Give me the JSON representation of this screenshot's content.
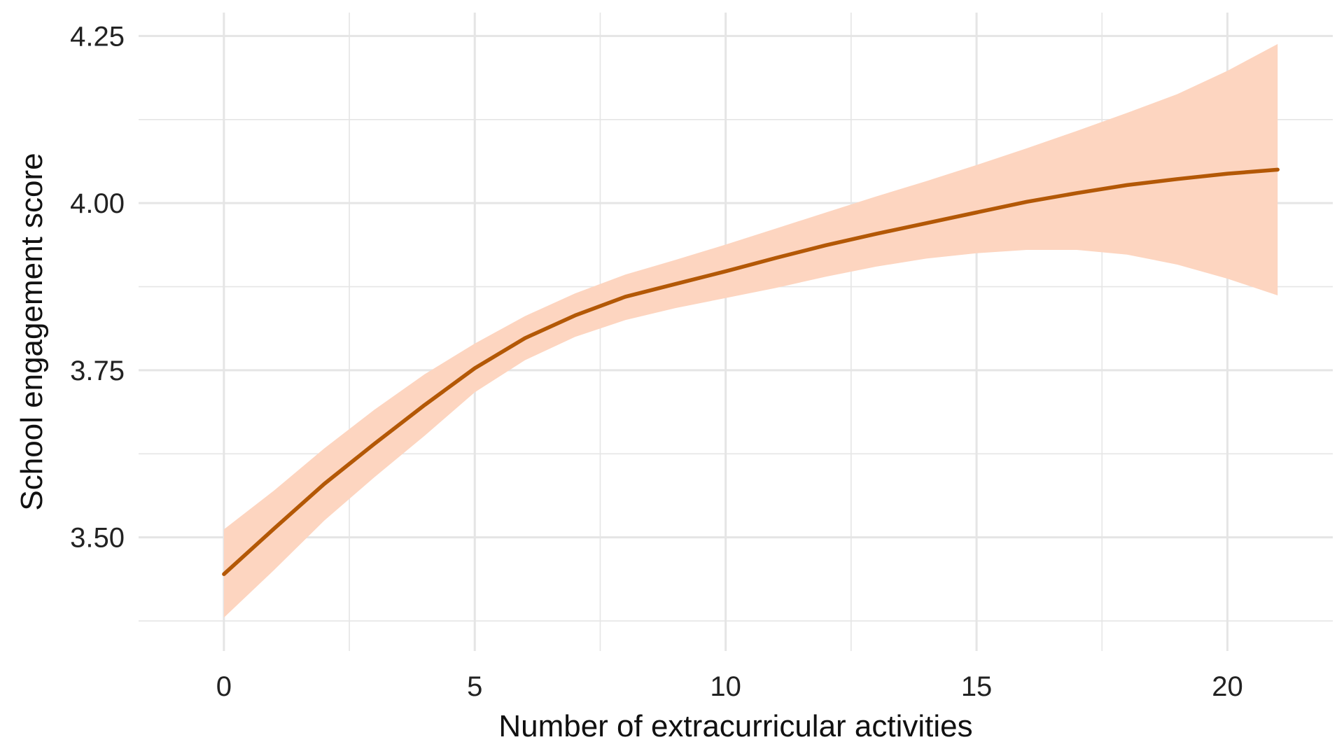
{
  "chart_data": {
    "type": "line",
    "title": "",
    "xlabel": "Number of extracurricular activities",
    "ylabel": "School engagement score",
    "xlim": [
      -1.7,
      22.1
    ],
    "ylim": [
      3.33,
      4.285
    ],
    "x_ticks": [
      0,
      5,
      10,
      15,
      20
    ],
    "x_tick_labels": [
      "0",
      "5",
      "10",
      "15",
      "20"
    ],
    "y_ticks": [
      3.5,
      3.75,
      4.0,
      4.25
    ],
    "y_tick_labels": [
      "3.50",
      "3.75",
      "4.00",
      "4.25"
    ],
    "x_minor_grid": [
      2.5,
      7.5,
      12.5,
      17.5
    ],
    "y_minor_grid": [
      3.375,
      3.625,
      3.875,
      4.125
    ],
    "grid": true,
    "legend": "none",
    "series": [
      {
        "x": [
          0,
          1,
          2,
          3,
          4,
          5,
          6,
          7,
          8,
          9,
          10,
          11,
          12,
          13,
          14,
          15,
          16,
          17,
          18,
          19,
          20,
          21
        ],
        "y": [
          3.445,
          3.513,
          3.58,
          3.64,
          3.698,
          3.753,
          3.798,
          3.832,
          3.86,
          3.879,
          3.898,
          3.918,
          3.937,
          3.954,
          3.97,
          3.986,
          4.002,
          4.015,
          4.027,
          4.036,
          4.044,
          4.05
        ],
        "lower": [
          3.38,
          3.451,
          3.525,
          3.59,
          3.652,
          3.717,
          3.765,
          3.8,
          3.825,
          3.843,
          3.858,
          3.873,
          3.89,
          3.905,
          3.917,
          3.925,
          3.93,
          3.93,
          3.923,
          3.908,
          3.887,
          3.862
        ],
        "upper": [
          3.512,
          3.57,
          3.633,
          3.691,
          3.744,
          3.79,
          3.831,
          3.865,
          3.893,
          3.915,
          3.938,
          3.962,
          3.986,
          4.01,
          4.033,
          4.057,
          4.082,
          4.108,
          4.135,
          4.163,
          4.198,
          4.238
        ]
      }
    ]
  },
  "colors": {
    "line": "#b35806",
    "ribbon": "#fdd5c0",
    "grid": "#e5e5e5",
    "background": "#ffffff"
  }
}
